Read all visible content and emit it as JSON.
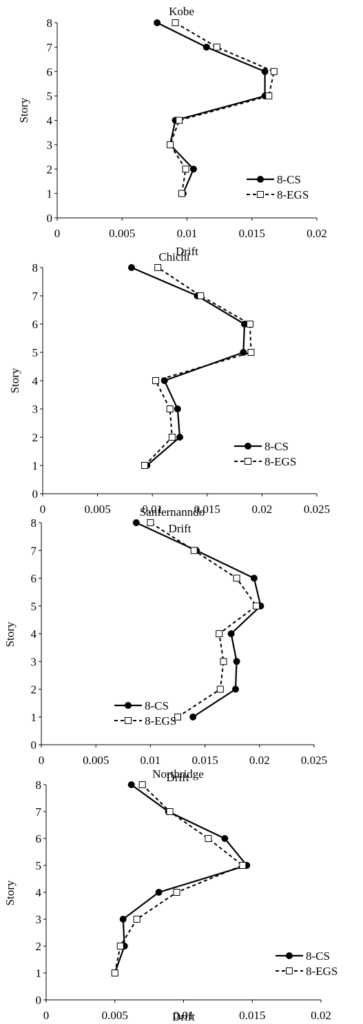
{
  "chart_data": [
    {
      "type": "line",
      "title": "Kobe",
      "xlabel": "Drift",
      "ylabel": "Story",
      "xlim": [
        0,
        0.02
      ],
      "ylim": [
        0,
        8
      ],
      "x_ticks": [
        0,
        0.005,
        0.01,
        0.015,
        0.02
      ],
      "x_tick_labels": [
        "0",
        "0.005",
        "0.01",
        "0.015",
        "0.02"
      ],
      "y_ticks": [
        0,
        1,
        2,
        3,
        4,
        5,
        6,
        7,
        8
      ],
      "y_tick_labels": [
        "0",
        "1",
        "2",
        "3",
        "4",
        "5",
        "6",
        "7",
        "8"
      ],
      "legend_position": "bottom-right",
      "series": [
        {
          "name": "8-CS",
          "style": "solid",
          "marker": "filled-circle",
          "x": [
            0.0097,
            0.0105,
            0.0087,
            0.0091,
            0.016,
            0.016,
            0.0115,
            0.0077
          ],
          "y": [
            1,
            2,
            3,
            4,
            5,
            6,
            7,
            8
          ]
        },
        {
          "name": "8-EGS",
          "style": "dashed",
          "marker": "open-square",
          "x": [
            0.0096,
            0.0099,
            0.0087,
            0.0094,
            0.0163,
            0.0167,
            0.0123,
            0.0091
          ],
          "y": [
            1,
            2,
            3,
            4,
            5,
            6,
            7,
            8
          ]
        }
      ]
    },
    {
      "type": "line",
      "title": "Chichi",
      "xlabel": "Drift",
      "ylabel": "Story",
      "xlim": [
        0,
        0.025
      ],
      "ylim": [
        0,
        8
      ],
      "x_ticks": [
        0,
        0.005,
        0.01,
        0.015,
        0.02,
        0.025
      ],
      "x_tick_labels": [
        "0",
        "0.005",
        "0.01",
        "0.015",
        "0.02",
        "0.025"
      ],
      "y_ticks": [
        0,
        1,
        2,
        3,
        4,
        5,
        6,
        7,
        8
      ],
      "y_tick_labels": [
        "0",
        "1",
        "2",
        "3",
        "4",
        "5",
        "6",
        "7",
        "8"
      ],
      "legend_position": "bottom-right",
      "series": [
        {
          "name": "8-CS",
          "style": "solid",
          "marker": "filled-circle",
          "x": [
            0.0095,
            0.0125,
            0.0123,
            0.0111,
            0.0183,
            0.0184,
            0.0141,
            0.0081
          ],
          "y": [
            1,
            2,
            3,
            4,
            5,
            6,
            7,
            8
          ]
        },
        {
          "name": "8-EGS",
          "style": "dashed",
          "marker": "open-square",
          "x": [
            0.0093,
            0.0118,
            0.0116,
            0.0103,
            0.019,
            0.0189,
            0.0144,
            0.0105
          ],
          "y": [
            1,
            2,
            3,
            4,
            5,
            6,
            7,
            8
          ]
        }
      ]
    },
    {
      "type": "line",
      "title": "Sanfernanndo",
      "xlabel": "Drift",
      "ylabel": "Story",
      "xlim": [
        0,
        0.025
      ],
      "ylim": [
        0,
        8
      ],
      "x_ticks": [
        0,
        0.005,
        0.01,
        0.015,
        0.02,
        0.025
      ],
      "x_tick_labels": [
        "0",
        "0.005",
        "0.01",
        "0.015",
        "0.02",
        "0.025"
      ],
      "y_ticks": [
        0,
        1,
        2,
        3,
        4,
        5,
        6,
        7,
        8
      ],
      "y_tick_labels": [
        "0",
        "1",
        "2",
        "3",
        "4",
        "5",
        "6",
        "7",
        "8"
      ],
      "legend_position": "bottom-left",
      "series": [
        {
          "name": "8-CS",
          "style": "solid",
          "marker": "filled-circle",
          "x": [
            0.0139,
            0.0178,
            0.0179,
            0.0174,
            0.0201,
            0.0195,
            0.0142,
            0.0087
          ],
          "y": [
            1,
            2,
            3,
            4,
            5,
            6,
            7,
            8
          ]
        },
        {
          "name": "8-EGS",
          "style": "dashed",
          "marker": "open-square",
          "x": [
            0.0125,
            0.0164,
            0.0167,
            0.0163,
            0.0197,
            0.0179,
            0.014,
            0.01
          ],
          "y": [
            1,
            2,
            3,
            4,
            5,
            6,
            7,
            8
          ]
        }
      ]
    },
    {
      "type": "line",
      "title": "Northridge",
      "xlabel": "Drift",
      "ylabel": "Story",
      "xlim": [
        0,
        0.02
      ],
      "ylim": [
        0,
        8
      ],
      "x_ticks": [
        0,
        0.005,
        0.01,
        0.015,
        0.02
      ],
      "x_tick_labels": [
        "0",
        "0.005",
        "0.01",
        "0.015",
        "0.02"
      ],
      "y_ticks": [
        0,
        1,
        2,
        3,
        4,
        5,
        6,
        7,
        8
      ],
      "y_tick_labels": [
        "0",
        "1",
        "2",
        "3",
        "4",
        "5",
        "6",
        "7",
        "8"
      ],
      "legend_position": "bottom-right",
      "series": [
        {
          "name": "8-CS",
          "style": "solid",
          "marker": "filled-circle",
          "x": [
            0.005,
            0.0057,
            0.0056,
            0.0082,
            0.0146,
            0.013,
            0.0089,
            0.0062
          ],
          "y": [
            1,
            2,
            3,
            4,
            5,
            6,
            7,
            8
          ]
        },
        {
          "name": "8-EGS",
          "style": "dashed",
          "marker": "open-square",
          "x": [
            0.005,
            0.0054,
            0.0066,
            0.0095,
            0.0143,
            0.0118,
            0.009,
            0.007
          ],
          "y": [
            1,
            2,
            3,
            4,
            5,
            6,
            7,
            8
          ]
        }
      ]
    }
  ]
}
